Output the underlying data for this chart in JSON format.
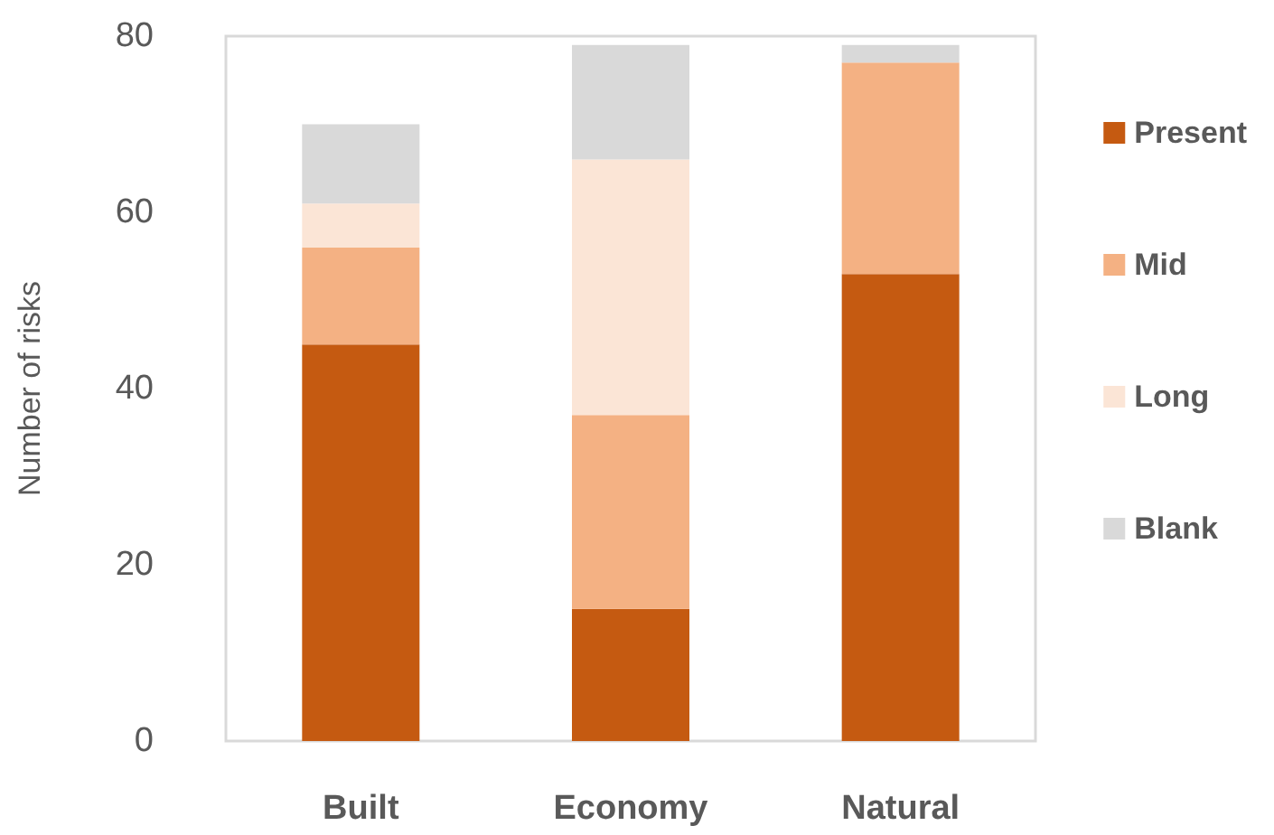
{
  "chart_data": {
    "type": "bar",
    "stacked": true,
    "ylabel": "Number of risks",
    "categories": [
      "Built",
      "Economy",
      "Natural"
    ],
    "series": [
      {
        "name": "Present",
        "color": "#c55a11",
        "values": [
          45,
          15,
          53
        ]
      },
      {
        "name": "Mid",
        "color": "#f4b183",
        "values": [
          11,
          22,
          24
        ]
      },
      {
        "name": "Long",
        "color": "#fbe5d6",
        "values": [
          5,
          29,
          0
        ]
      },
      {
        "name": "Blank",
        "color": "#d9d9d9",
        "values": [
          9,
          13,
          2
        ]
      }
    ],
    "ylim": [
      0,
      80
    ],
    "yticks": [
      0,
      20,
      40,
      60,
      80
    ],
    "grid": false,
    "legend": "right"
  }
}
